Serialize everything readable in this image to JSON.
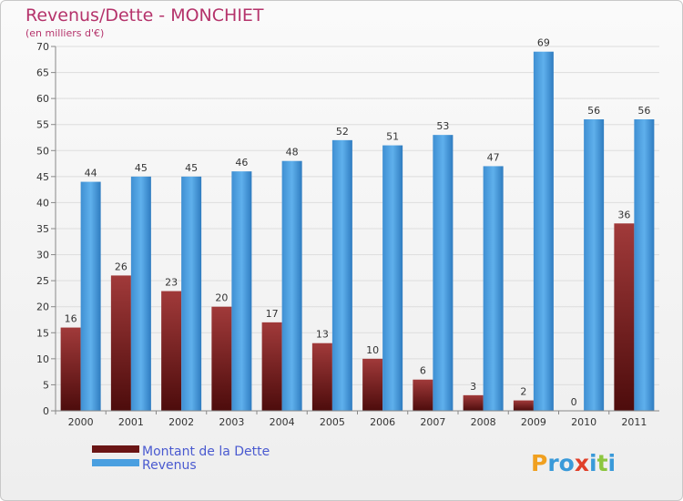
{
  "chart_data": {
    "type": "bar",
    "title": "Revenus/Dette - MONCHIET",
    "subtitle": "(en milliers d'€)",
    "categories": [
      "2000",
      "2001",
      "2002",
      "2003",
      "2004",
      "2005",
      "2006",
      "2007",
      "2008",
      "2009",
      "2010",
      "2011"
    ],
    "series": [
      {
        "name": "Montant de la Dette",
        "color": "#7a1f1f",
        "values": [
          16,
          26,
          23,
          20,
          17,
          13,
          10,
          6,
          3,
          2,
          0,
          36
        ]
      },
      {
        "name": "Revenus",
        "color": "#4a9fe0",
        "values": [
          44,
          45,
          45,
          46,
          48,
          52,
          51,
          53,
          47,
          69,
          56,
          56
        ]
      }
    ],
    "ylim": [
      0,
      70
    ],
    "yticks": [
      0,
      5,
      10,
      15,
      20,
      25,
      30,
      35,
      40,
      45,
      50,
      55,
      60,
      65,
      70
    ],
    "grid": true,
    "legend_position": "bottom-left"
  },
  "watermark": {
    "text": "Proxiti"
  }
}
